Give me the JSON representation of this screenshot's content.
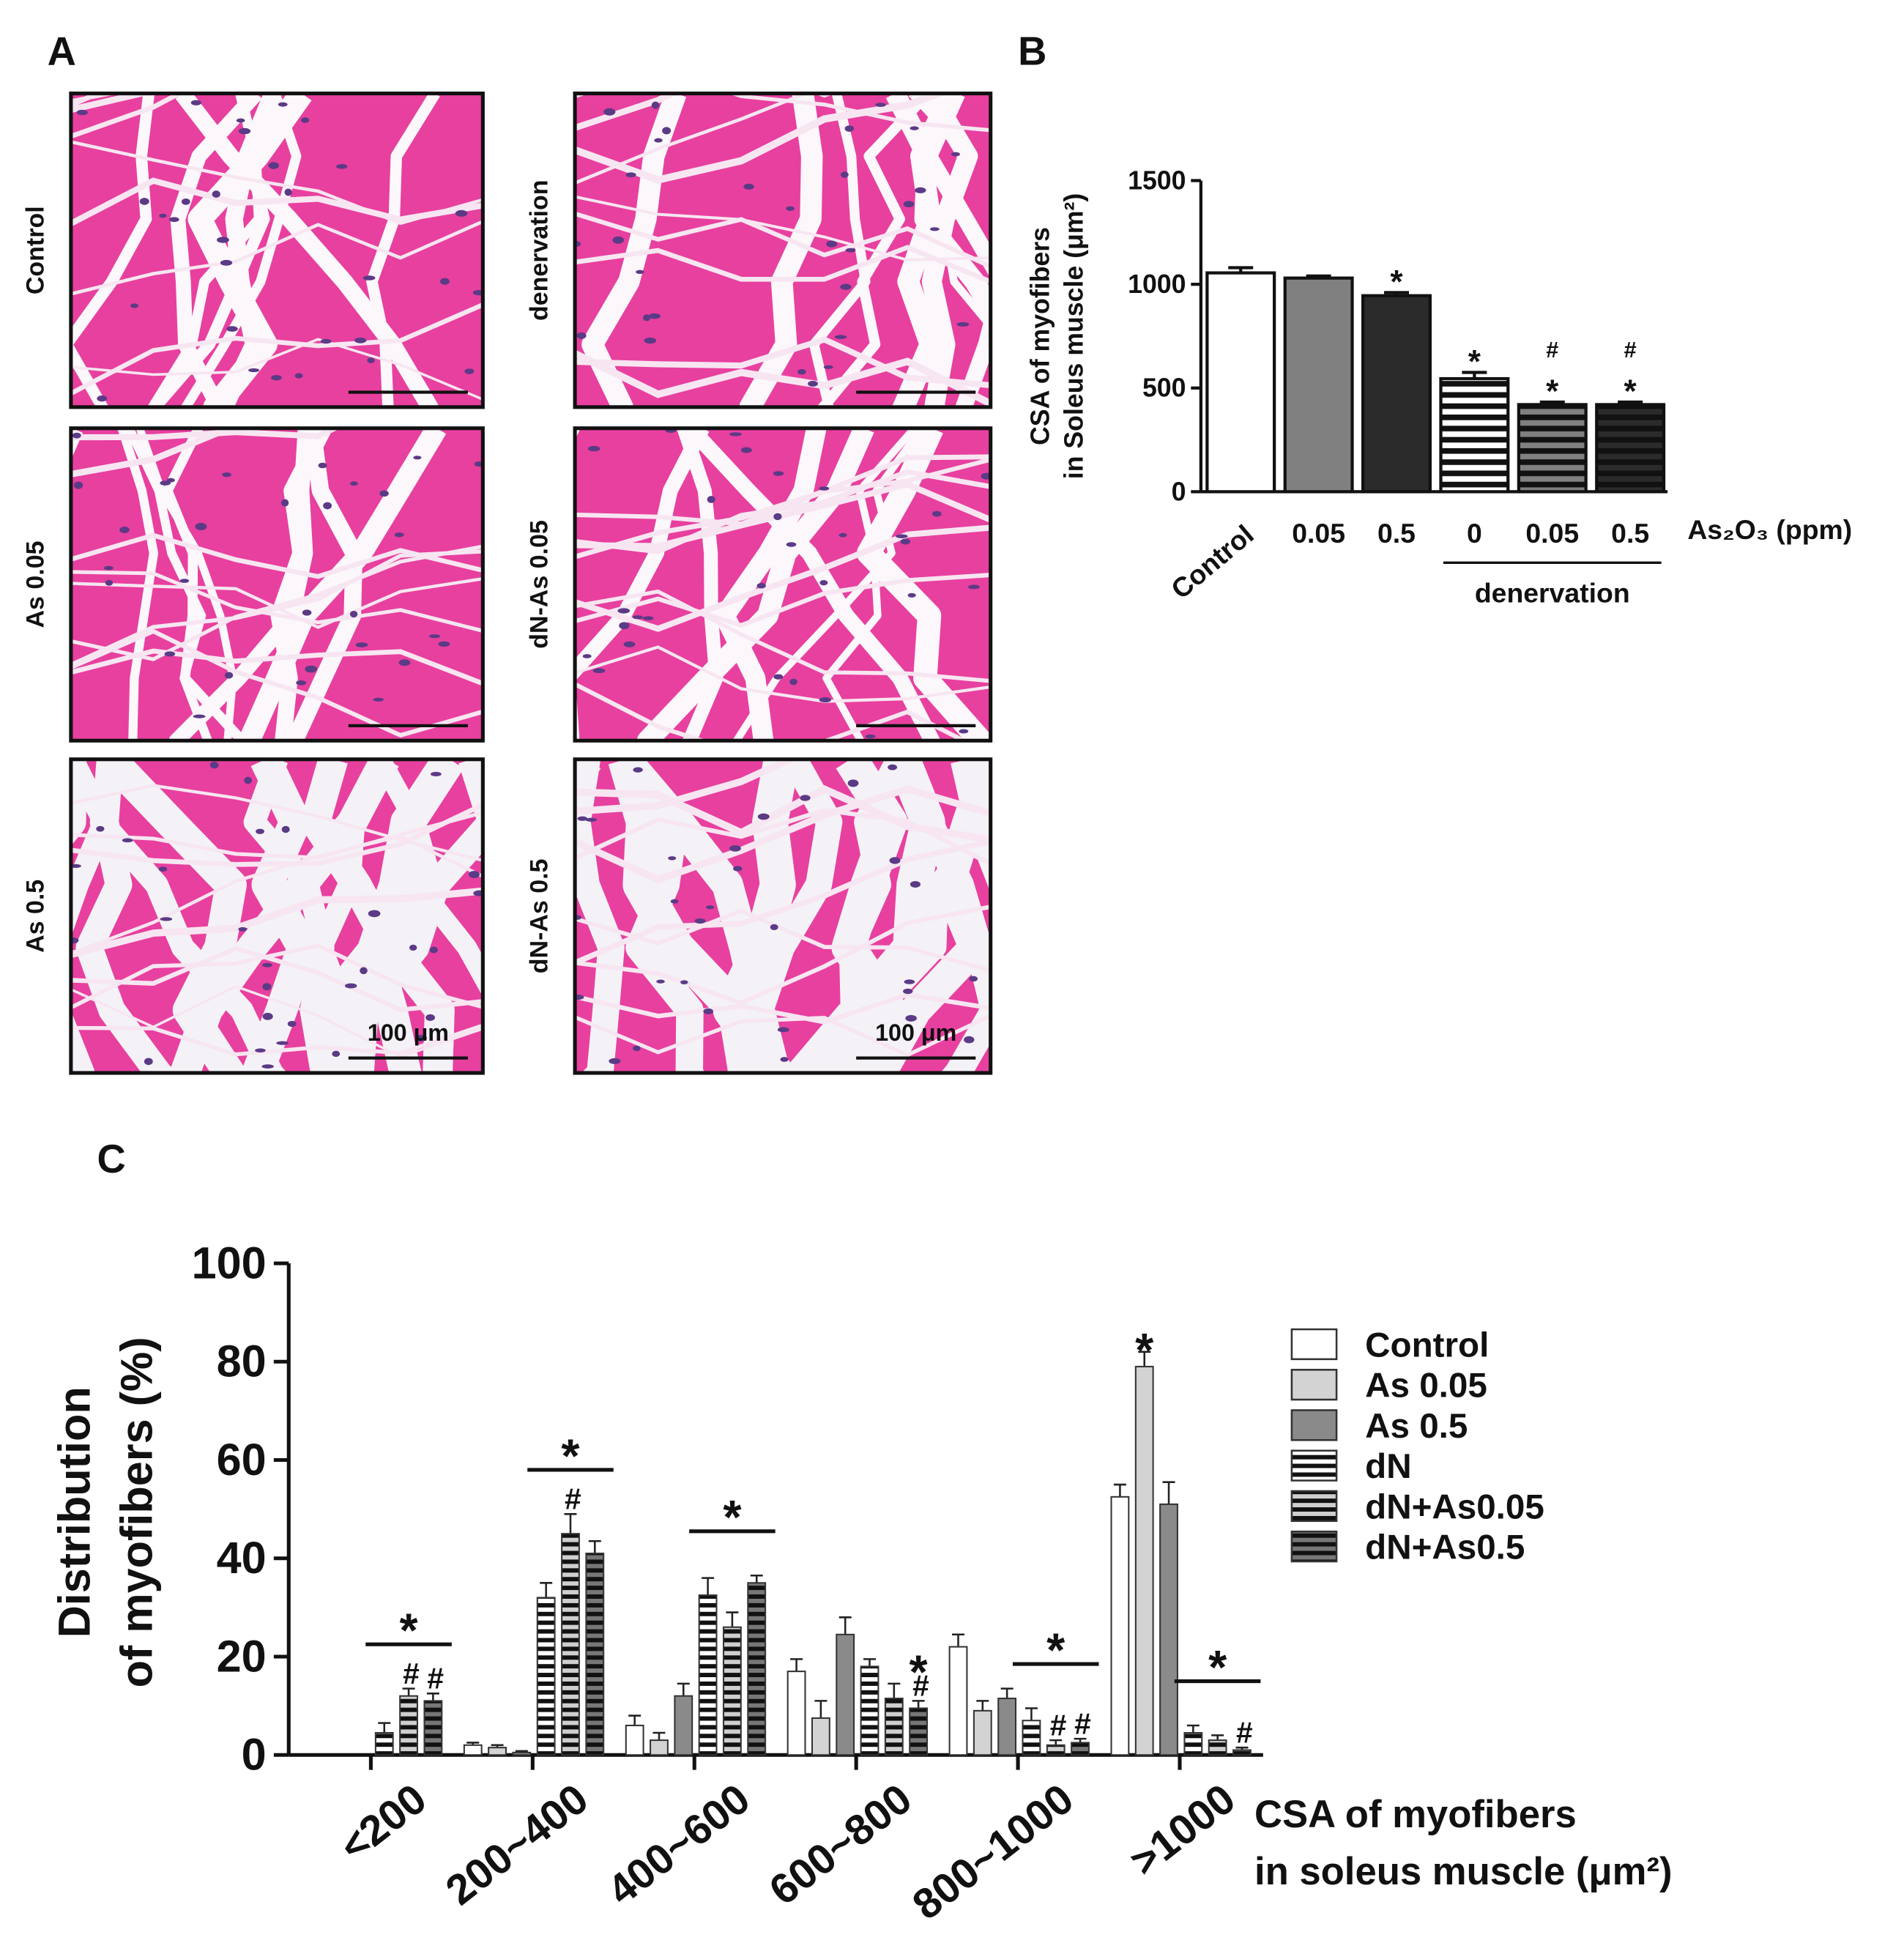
{
  "panel_a": {
    "label": "A",
    "images": [
      "Control",
      "As 0.05",
      "As 0.5",
      "denervation",
      "dN-As 0.05",
      "dN-As 0.5"
    ],
    "scale_bar": "100 μm"
  },
  "chart_data": [
    {
      "type": "bar",
      "panel_label": "B",
      "categories": [
        "Control",
        "0.05",
        "0.5",
        "0",
        "0.05",
        "0.5"
      ],
      "values": [
        1055,
        1030,
        945,
        545,
        420,
        420
      ],
      "errors": [
        25,
        10,
        15,
        30,
        12,
        12
      ],
      "colors": [
        "#ffffff",
        "#808080",
        "#2b2b2b",
        "#ffffff",
        "#808080",
        "#2b2b2b"
      ],
      "hatch": [
        false,
        false,
        false,
        true,
        true,
        true
      ],
      "stars": [
        null,
        null,
        "*",
        "*",
        "*",
        "*"
      ],
      "hashes": [
        null,
        null,
        null,
        null,
        "#",
        "#"
      ],
      "ylabel": [
        "CSA of myofibers",
        "in Soleus muscle (μm²)"
      ],
      "xlabel": "As₂O₃ (ppm)",
      "group_label": "denervation",
      "ylim": [
        0,
        1500
      ],
      "yticks": [
        0,
        500,
        1000,
        1500
      ]
    },
    {
      "type": "grouped_bar",
      "panel_label": "C",
      "categories": [
        "<200",
        "200~400",
        "400~600",
        "600~800",
        "800~1000",
        ">1000"
      ],
      "series": [
        {
          "name": "Control",
          "color": "#ffffff",
          "hatch": false,
          "values": [
            0,
            2,
            6,
            17,
            22,
            52.5
          ],
          "errors": [
            0,
            0.5,
            2,
            2.5,
            2.5,
            2.5
          ],
          "stars": [
            null,
            null,
            null,
            null,
            null,
            null
          ],
          "hashes": [
            null,
            null,
            null,
            null,
            null,
            null
          ]
        },
        {
          "name": "As 0.05",
          "color": "#d3d3d3",
          "hatch": false,
          "values": [
            0,
            1.5,
            3,
            7.5,
            9,
            79
          ],
          "errors": [
            0,
            0.5,
            1.5,
            3.5,
            2,
            3
          ],
          "stars": [
            null,
            null,
            null,
            null,
            null,
            "*"
          ],
          "hashes": [
            null,
            null,
            null,
            null,
            null,
            null
          ]
        },
        {
          "name": "As 0.5",
          "color": "#8a8a8a",
          "hatch": false,
          "values": [
            0,
            0.5,
            12,
            24.5,
            11.5,
            51
          ],
          "errors": [
            0,
            0.3,
            2.5,
            3.5,
            2,
            4.5
          ],
          "stars": [
            null,
            null,
            null,
            null,
            null,
            null
          ],
          "hashes": [
            null,
            null,
            null,
            null,
            null,
            null
          ]
        },
        {
          "name": "dN",
          "color": "#ffffff",
          "hatch": true,
          "values": [
            4.5,
            32,
            32.5,
            18,
            7,
            4.5
          ],
          "errors": [
            2,
            3,
            3.5,
            1.5,
            2.5,
            1.5
          ],
          "stars": [
            null,
            null,
            null,
            null,
            null,
            null
          ],
          "hashes": [
            null,
            null,
            null,
            null,
            null,
            null
          ]
        },
        {
          "name": "dN+As0.05",
          "color": "#cfcfcf",
          "hatch": true,
          "values": [
            12,
            45,
            26,
            11.5,
            2,
            3
          ],
          "errors": [
            1.5,
            4,
            3,
            3,
            1,
            1
          ],
          "stars": [
            null,
            null,
            null,
            null,
            null,
            null
          ],
          "hashes": [
            "#",
            "#",
            null,
            null,
            "#",
            null
          ]
        },
        {
          "name": "dN+As0.5",
          "color": "#777777",
          "hatch": true,
          "values": [
            11,
            41,
            35,
            9.5,
            2.5,
            1
          ],
          "errors": [
            1.5,
            2.5,
            1.5,
            1.5,
            0.8,
            0.5
          ],
          "stars": [
            null,
            null,
            null,
            "*",
            null,
            null
          ],
          "hashes": [
            "#",
            null,
            null,
            "#",
            "#",
            "#"
          ]
        }
      ],
      "bracket_stars": [
        "*",
        "*",
        "*",
        null,
        "*",
        "*"
      ],
      "ylabel": [
        "Distribution",
        "of myofibers (%)"
      ],
      "xlabel": [
        "CSA of myofibers",
        "in soleus muscle (μm²)"
      ],
      "ylim": [
        0,
        100
      ],
      "yticks": [
        0,
        20,
        40,
        60,
        80,
        100
      ]
    }
  ]
}
